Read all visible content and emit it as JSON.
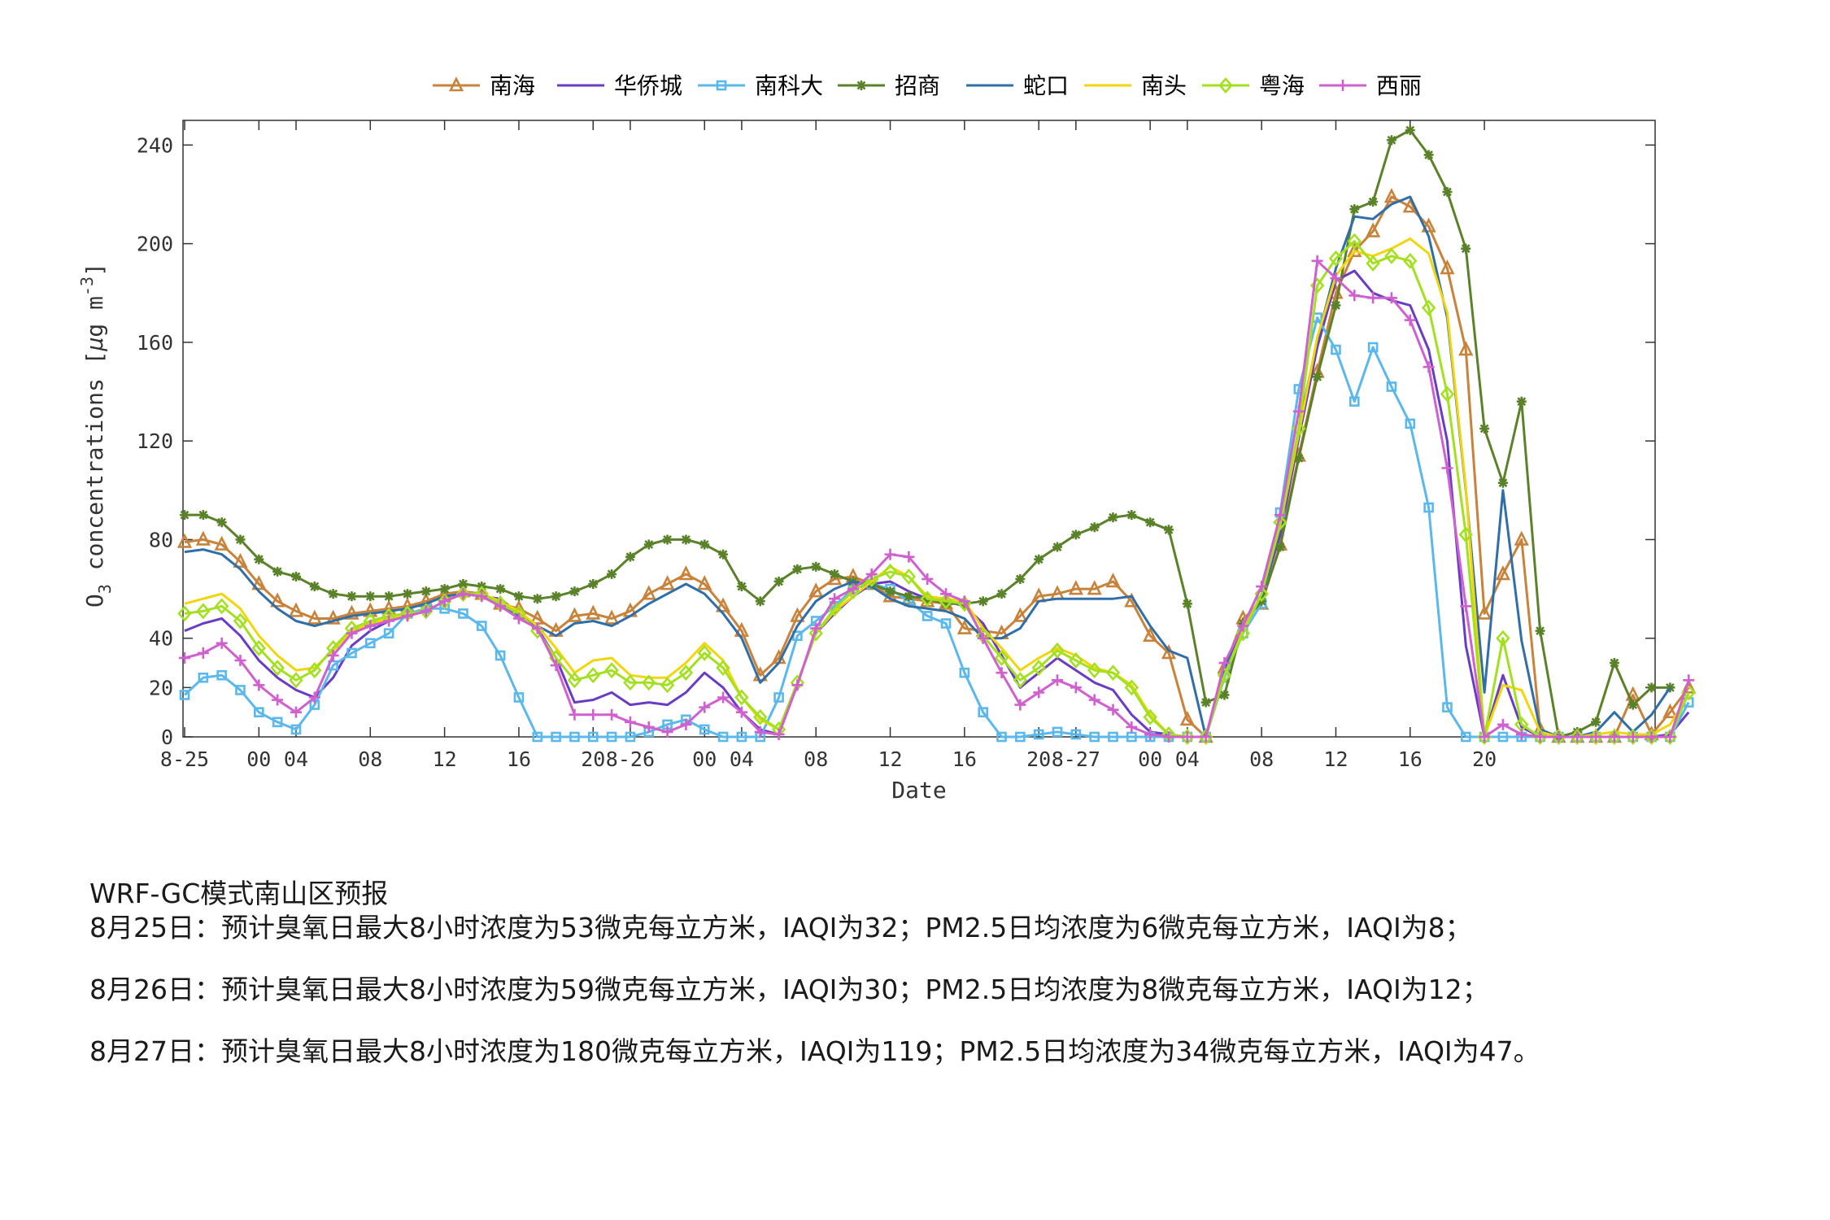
{
  "chart_data": {
    "type": "line",
    "xlabel": "Date",
    "ylabel_base": "O",
    "ylabel_sub": "3",
    "ylabel_rest": " concentrations [",
    "ylabel_mu": "μ",
    "ylabel_unit": "g m",
    "ylabel_exp": "-3",
    "ylabel_close": "]",
    "ylim": [
      0,
      250
    ],
    "yticks": [
      0,
      20,
      40,
      80,
      120,
      160,
      200,
      240
    ],
    "xlim": [
      0,
      80
    ],
    "xticks": [
      {
        "x": 0,
        "label": "8-25"
      },
      {
        "x": 4,
        "label": "00"
      },
      {
        "x": 6,
        "label": "04"
      },
      {
        "x": 10,
        "label": "08"
      },
      {
        "x": 14,
        "label": "12"
      },
      {
        "x": 18,
        "label": "16"
      },
      {
        "x": 22,
        "label": "20"
      },
      {
        "x": 24,
        "label": "8-26"
      },
      {
        "x": 28,
        "label": "00"
      },
      {
        "x": 30,
        "label": "04"
      },
      {
        "x": 34,
        "label": "08"
      },
      {
        "x": 38,
        "label": "12"
      },
      {
        "x": 42,
        "label": "16"
      },
      {
        "x": 46,
        "label": "20"
      },
      {
        "x": 48,
        "label": "8-27"
      },
      {
        "x": 52,
        "label": "00"
      },
      {
        "x": 54,
        "label": "04"
      },
      {
        "x": 58,
        "label": "08"
      },
      {
        "x": 62,
        "label": "12"
      },
      {
        "x": 66,
        "label": "16"
      },
      {
        "x": 70,
        "label": "20"
      }
    ],
    "grid": false,
    "legend_position": "top",
    "series": [
      {
        "name": "南海",
        "color": "#c8823a",
        "marker": "triangle",
        "values": [
          79,
          80,
          78,
          71,
          62,
          55,
          51,
          48,
          48,
          50,
          51,
          52,
          53,
          55,
          58,
          59,
          58,
          54,
          52,
          48,
          43,
          49,
          50,
          48,
          51,
          58,
          62,
          66,
          62,
          53,
          43,
          25,
          32,
          49,
          59,
          64,
          65,
          62,
          57,
          56,
          55,
          54,
          44,
          43,
          42,
          49,
          57,
          58,
          60,
          60,
          63,
          55,
          41,
          34,
          7,
          0,
          28,
          48,
          54,
          78,
          114,
          148,
          180,
          197,
          205,
          219,
          215,
          207,
          190,
          157,
          50,
          66,
          80,
          3,
          0,
          0,
          0,
          0,
          17,
          1,
          10,
          20
        ]
      },
      {
        "name": "华侨城",
        "color": "#6a3cc5",
        "marker": "none",
        "values": [
          43,
          46,
          48,
          41,
          31,
          24,
          19,
          16,
          24,
          37,
          43,
          47,
          49,
          51,
          55,
          58,
          57,
          56,
          50,
          44,
          32,
          14,
          15,
          18,
          13,
          14,
          13,
          18,
          26,
          20,
          10,
          3,
          1,
          22,
          42,
          50,
          57,
          62,
          63,
          59,
          56,
          55,
          53,
          46,
          33,
          20,
          26,
          32,
          27,
          22,
          19,
          9,
          2,
          1,
          0,
          0,
          28,
          43,
          57,
          82,
          121,
          158,
          185,
          189,
          180,
          177,
          175,
          157,
          120,
          37,
          0,
          25,
          4,
          0,
          0,
          0,
          0,
          0,
          0,
          0,
          1,
          10
        ]
      },
      {
        "name": "南科大",
        "color": "#5ab8ec",
        "marker": "square",
        "values": [
          17,
          24,
          25,
          19,
          10,
          6,
          3,
          13,
          29,
          34,
          38,
          42,
          50,
          52,
          52,
          50,
          45,
          33,
          16,
          0,
          0,
          0,
          0,
          0,
          0,
          2,
          5,
          7,
          3,
          0,
          0,
          0,
          16,
          41,
          47,
          53,
          60,
          62,
          60,
          55,
          49,
          46,
          26,
          10,
          0,
          0,
          1,
          2,
          1,
          0,
          0,
          0,
          0,
          0,
          0,
          0,
          24,
          42,
          54,
          91,
          141,
          170,
          157,
          136,
          158,
          142,
          127,
          93,
          12,
          0,
          0,
          0,
          0,
          0,
          0,
          0,
          0,
          0,
          0,
          0,
          0,
          14
        ]
      },
      {
        "name": "招商",
        "color": "#5a8228",
        "marker": "star",
        "values": [
          90,
          90,
          87,
          80,
          72,
          67,
          65,
          61,
          58,
          57,
          57,
          57,
          58,
          59,
          60,
          62,
          61,
          60,
          57,
          56,
          57,
          59,
          62,
          66,
          73,
          78,
          80,
          80,
          78,
          74,
          61,
          55,
          63,
          68,
          69,
          66,
          63,
          62,
          59,
          57,
          56,
          54,
          54,
          55,
          58,
          64,
          72,
          77,
          82,
          85,
          89,
          90,
          87,
          84,
          54,
          14,
          17,
          46,
          55,
          77,
          113,
          146,
          175,
          214,
          217,
          242,
          246,
          236,
          221,
          198,
          125,
          103,
          136,
          43,
          0,
          2,
          6,
          30,
          13,
          20,
          20
        ]
      },
      {
        "name": "蛇口",
        "color": "#2f6ea8",
        "marker": "none",
        "values": [
          75,
          76,
          74,
          68,
          59,
          52,
          47,
          45,
          47,
          49,
          50,
          51,
          52,
          54,
          57,
          58,
          57,
          53,
          49,
          45,
          41,
          46,
          47,
          45,
          49,
          54,
          58,
          62,
          58,
          50,
          40,
          22,
          30,
          45,
          55,
          60,
          63,
          61,
          56,
          53,
          52,
          51,
          48,
          40,
          40,
          44,
          55,
          56,
          56,
          56,
          56,
          57,
          45,
          35,
          32,
          0,
          27,
          45,
          57,
          85,
          125,
          161,
          190,
          211,
          210,
          216,
          219,
          203,
          170,
          100,
          18,
          100,
          39,
          3,
          0,
          0,
          2,
          10,
          2,
          9,
          20
        ]
      },
      {
        "name": "南头",
        "color": "#f2d50a",
        "marker": "none",
        "values": [
          54,
          56,
          58,
          52,
          41,
          33,
          27,
          28,
          35,
          43,
          46,
          48,
          49,
          51,
          55,
          58,
          58,
          55,
          51,
          45,
          36,
          26,
          31,
          32,
          25,
          24,
          24,
          30,
          38,
          31,
          16,
          7,
          3,
          22,
          42,
          51,
          57,
          63,
          69,
          65,
          57,
          56,
          55,
          44,
          36,
          27,
          32,
          36,
          33,
          28,
          26,
          21,
          9,
          1,
          0,
          0,
          25,
          43,
          58,
          86,
          123,
          162,
          187,
          197,
          195,
          198,
          202,
          196,
          172,
          101,
          0,
          21,
          19,
          2,
          0,
          0,
          1,
          2,
          1,
          1,
          5,
          17
        ]
      },
      {
        "name": "粤海",
        "color": "#a3e020",
        "marker": "diamond",
        "values": [
          50,
          51,
          53,
          47,
          36,
          28,
          23,
          27,
          36,
          44,
          47,
          49,
          50,
          51,
          55,
          58,
          58,
          54,
          50,
          43,
          32,
          23,
          25,
          27,
          22,
          22,
          21,
          26,
          34,
          28,
          16,
          8,
          3,
          22,
          42,
          52,
          59,
          64,
          67,
          65,
          56,
          55,
          54,
          41,
          32,
          23,
          28,
          35,
          31,
          27,
          26,
          20,
          8,
          1,
          0,
          0,
          25,
          42,
          58,
          87,
          125,
          183,
          194,
          201,
          192,
          195,
          193,
          174,
          139,
          82,
          0,
          40,
          5,
          0,
          0,
          0,
          0,
          0,
          0,
          0,
          0,
          18
        ]
      },
      {
        "name": "西丽",
        "color": "#d060d0",
        "marker": "plus",
        "values": [
          32,
          34,
          38,
          31,
          21,
          15,
          10,
          16,
          33,
          42,
          45,
          47,
          49,
          51,
          55,
          58,
          57,
          53,
          48,
          44,
          29,
          9,
          9,
          9,
          6,
          4,
          2,
          5,
          12,
          16,
          10,
          2,
          1,
          21,
          44,
          56,
          60,
          66,
          74,
          73,
          64,
          58,
          55,
          40,
          26,
          13,
          18,
          23,
          20,
          15,
          11,
          4,
          1,
          0,
          0,
          0,
          30,
          45,
          61,
          90,
          132,
          193,
          186,
          179,
          178,
          178,
          169,
          150,
          109,
          53,
          0,
          5,
          1,
          0,
          0,
          0,
          0,
          0,
          0,
          0,
          0,
          23
        ]
      }
    ]
  },
  "forecast": {
    "title": "WRF-GC模式南山区预报",
    "lines": [
      "8月25日：预计臭氧日最大8小时浓度为53微克每立方米，IAQI为32；PM2.5日均浓度为6微克每立方米，IAQI为8；",
      "8月26日：预计臭氧日最大8小时浓度为59微克每立方米，IAQI为30；PM2.5日均浓度为8微克每立方米，IAQI为12；",
      "8月27日：预计臭氧日最大8小时浓度为180微克每立方米，IAQI为119；PM2.5日均浓度为34微克每立方米，IAQI为47。"
    ]
  }
}
